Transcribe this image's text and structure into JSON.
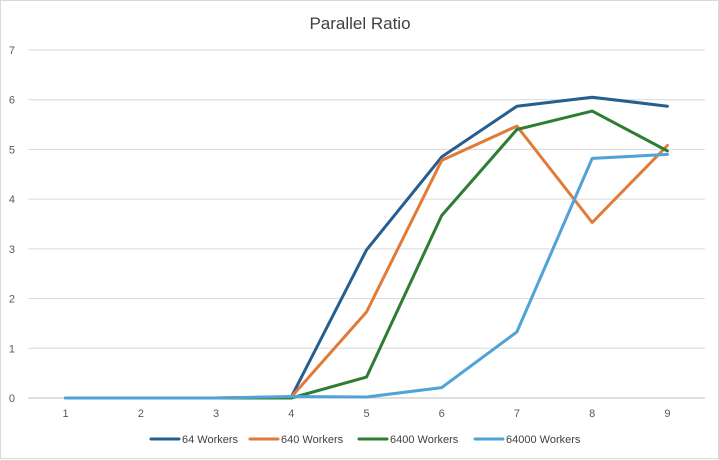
{
  "chart_data": {
    "type": "line",
    "title": "Parallel Ratio",
    "xlabel": "",
    "ylabel": "",
    "x": [
      1,
      2,
      3,
      4,
      5,
      6,
      7,
      8,
      9
    ],
    "ylim": [
      0,
      7
    ],
    "yticks": [
      0,
      1,
      2,
      3,
      4,
      5,
      6,
      7
    ],
    "grid": true,
    "legend_position": "bottom",
    "series": [
      {
        "name": "64 Workers",
        "color": "#255E91",
        "values": [
          0,
          0,
          0,
          0.02,
          2.98,
          4.85,
          5.87,
          6.05,
          5.87
        ]
      },
      {
        "name": "640 Workers",
        "color": "#E07B39",
        "values": [
          0,
          0,
          0,
          0.02,
          1.73,
          4.78,
          5.47,
          3.53,
          5.08
        ]
      },
      {
        "name": "6400 Workers",
        "color": "#2E7D32",
        "values": [
          0,
          0,
          0,
          0,
          0.42,
          3.67,
          5.4,
          5.77,
          4.97
        ]
      },
      {
        "name": "64000 Workers",
        "color": "#4FA3D6",
        "values": [
          0,
          0,
          0,
          0.03,
          0.02,
          0.21,
          1.33,
          4.82,
          4.9
        ]
      }
    ]
  }
}
